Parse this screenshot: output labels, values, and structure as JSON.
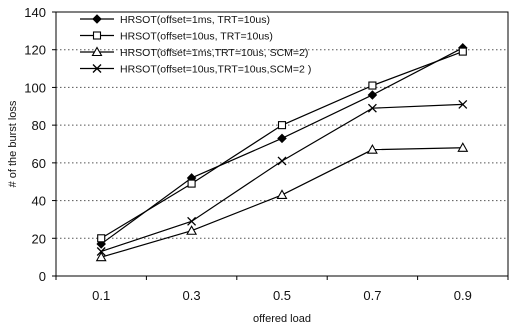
{
  "chart_data": {
    "type": "line",
    "title": "",
    "xlabel": "offered load",
    "ylabel": "# of the burst loss",
    "categories": [
      "0.1",
      "0.3",
      "0.5",
      "0.7",
      "0.9"
    ],
    "ylim": [
      0,
      140
    ],
    "yticks": [
      "0",
      "20",
      "40",
      "60",
      "80",
      "100",
      "120",
      "140"
    ],
    "grid": "horizontal-dotted",
    "legend_position": "top-left-inside",
    "series": [
      {
        "name": "HRSOT(offset=1ms, TRT=10us)",
        "marker": "diamond",
        "values": [
          17,
          52,
          73,
          96,
          121
        ]
      },
      {
        "name": "HRSOT(offset=10us, TRT=10us)",
        "marker": "square",
        "values": [
          20,
          49,
          80,
          101,
          119
        ]
      },
      {
        "name": "HRSOT(offset=1ms,TRT=10us, SCM=2)",
        "marker": "triangle",
        "values": [
          10,
          24,
          43,
          67,
          68
        ]
      },
      {
        "name": "HRSOT(offset=10us,TRT=10us,SCM=2 )",
        "marker": "x",
        "values": [
          13,
          29,
          61,
          89,
          91
        ]
      }
    ]
  }
}
